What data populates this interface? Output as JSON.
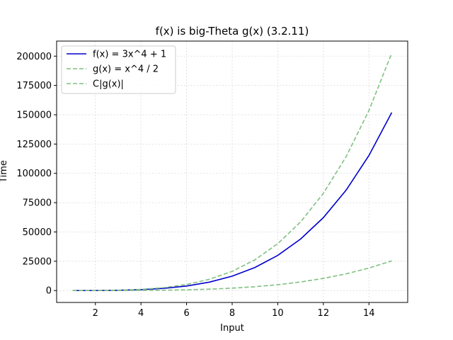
{
  "chart_data": {
    "type": "line",
    "title": "f(x) is big-Theta g(x) (3.2.11)",
    "xlabel": "Input",
    "ylabel": "Time",
    "xlim": [
      0.3,
      15.7
    ],
    "ylim": [
      -10150,
      212850
    ],
    "x_ticks": [
      2,
      4,
      6,
      8,
      10,
      12,
      14
    ],
    "y_ticks": [
      0,
      25000,
      50000,
      75000,
      100000,
      125000,
      150000,
      175000,
      200000
    ],
    "grid": true,
    "legend_position": "top-left",
    "x": [
      1,
      2,
      3,
      4,
      5,
      6,
      7,
      8,
      9,
      10,
      11,
      12,
      13,
      14,
      15
    ],
    "series": [
      {
        "name": "f(x) = 3x^4 + 1",
        "color": "#0000cd",
        "style": "solid",
        "values": [
          4,
          49,
          244,
          769,
          1876,
          3889,
          7204,
          12289,
          19684,
          30001,
          43924,
          62209,
          85684,
          115249,
          151876
        ]
      },
      {
        "name": "g(x) = x^4 / 2",
        "color": "#80c080",
        "style": "dashed",
        "values": [
          0.5,
          8,
          40.5,
          128,
          312.5,
          648,
          1200.5,
          2048,
          3280.5,
          5000,
          7320.5,
          10368,
          14280.5,
          19208,
          25312.5
        ]
      },
      {
        "name": "C|g(x)|",
        "color": "#80c080",
        "style": "dashed",
        "values": [
          4,
          64,
          324,
          1024,
          2500,
          5184,
          9604,
          16384,
          26244,
          40000,
          58564,
          82944,
          114244,
          153664,
          202500
        ]
      }
    ]
  }
}
